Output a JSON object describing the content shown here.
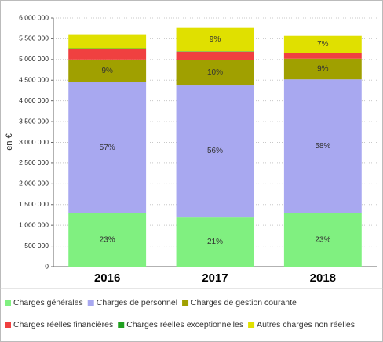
{
  "chart_data": {
    "type": "stacked_bar",
    "y_label": "en €",
    "categories": [
      "2016",
      "2017",
      "2018"
    ],
    "ylim": [
      0,
      6000000
    ],
    "yticks": [
      {
        "value": 0,
        "label": "0"
      },
      {
        "value": 500000,
        "label": "500 000"
      },
      {
        "value": 1000000,
        "label": "1 000 000"
      },
      {
        "value": 1500000,
        "label": "1 500 000"
      },
      {
        "value": 2000000,
        "label": "2 000 000"
      },
      {
        "value": 2500000,
        "label": "2 500 000"
      },
      {
        "value": 3000000,
        "label": "3 000 000"
      },
      {
        "value": 3500000,
        "label": "3 500 000"
      },
      {
        "value": 4000000,
        "label": "4 000 000"
      },
      {
        "value": 4500000,
        "label": "4 500 000"
      },
      {
        "value": 5000000,
        "label": "5 000 000"
      },
      {
        "value": 5500000,
        "label": "5 500 000"
      },
      {
        "value": 6000000,
        "label": "6 000 000"
      }
    ],
    "grid": true,
    "series": [
      {
        "name": "Charges générales",
        "color": "#80f080",
        "values": [
          1290000,
          1190000,
          1290000
        ],
        "share_labels": [
          "23%",
          "21%",
          "23%"
        ]
      },
      {
        "name": "Charges de personnel",
        "color": "#a8a8f0",
        "values": [
          3160000,
          3200000,
          3230000
        ],
        "share_labels": [
          "57%",
          "56%",
          "58%"
        ]
      },
      {
        "name": "Charges de gestion courante",
        "color": "#a0a000",
        "values": [
          550000,
          590000,
          500000
        ],
        "share_labels": [
          "9%",
          "10%",
          "9%"
        ]
      },
      {
        "name": "Charges réelles financières",
        "color": "#f04040",
        "values": [
          260000,
          210000,
          130000
        ],
        "share_labels": [
          null,
          null,
          null
        ]
      },
      {
        "name": "Charges réelles exceptionnelles",
        "color": "#20a020",
        "values": [
          10000,
          10000,
          10000
        ],
        "share_labels": [
          null,
          null,
          null
        ]
      },
      {
        "name": "Autres charges non réelles",
        "color": "#e0e000",
        "values": [
          340000,
          560000,
          410000
        ],
        "share_labels": [
          null,
          "9%",
          "7%"
        ]
      }
    ]
  }
}
